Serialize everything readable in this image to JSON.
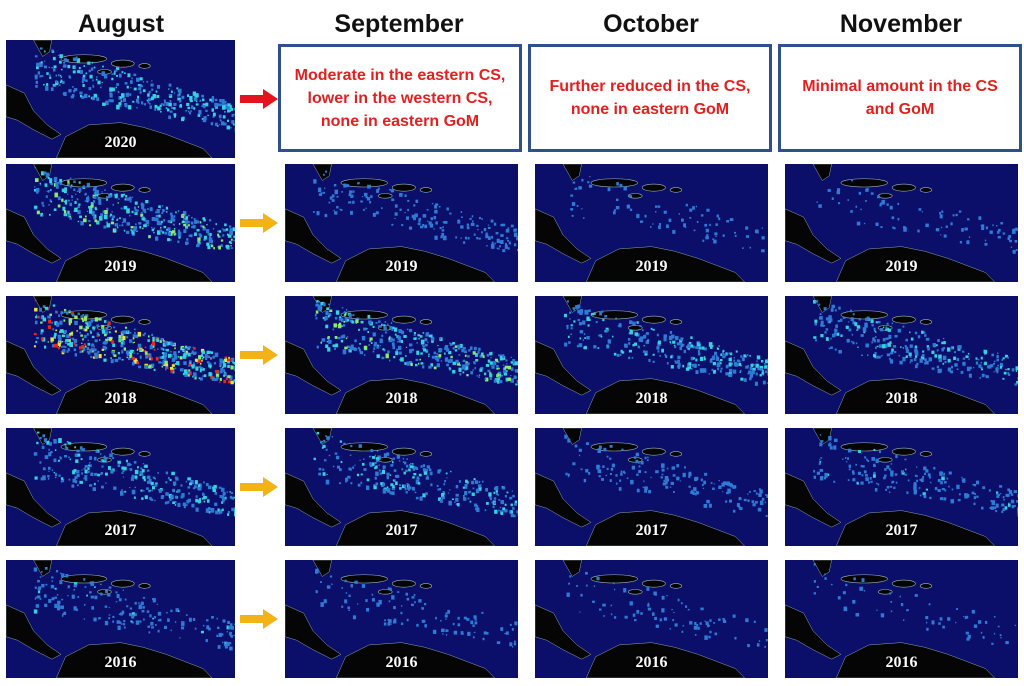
{
  "columns": [
    "August",
    "September",
    "October",
    "November"
  ],
  "notes": [
    "Moderate in the eastern CS, lower in the western CS, none in eastern GoM",
    "Further reduced in the CS, none in eastern GoM",
    "Minimal amount in the CS and GoM"
  ],
  "rows": [
    {
      "year": "2020",
      "arrow_color": "#e5141c",
      "intensity": [
        0.55
      ]
    },
    {
      "year": "2019",
      "arrow_color": "#f3b316",
      "intensity": [
        0.7,
        0.25,
        0.08,
        0.08
      ]
    },
    {
      "year": "2018",
      "arrow_color": "#f3b316",
      "intensity": [
        0.95,
        0.65,
        0.5,
        0.45
      ]
    },
    {
      "year": "2017",
      "arrow_color": "#f3b316",
      "intensity": [
        0.5,
        0.45,
        0.22,
        0.3
      ]
    },
    {
      "year": "2016",
      "arrow_color": "#f3b316",
      "intensity": [
        0.28,
        0.12,
        0.08,
        0.04
      ]
    }
  ],
  "colors": {
    "ocean": "#0b0f6a",
    "land": "#050505",
    "box_border": "#2f4f8f",
    "note_text": "#e41f1f"
  }
}
